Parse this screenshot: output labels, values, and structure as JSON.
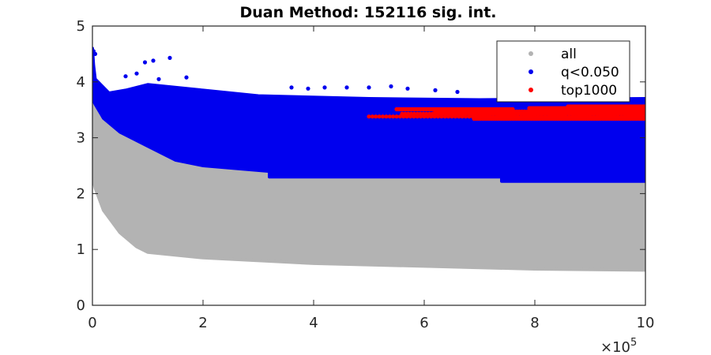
{
  "chart_data": {
    "type": "scatter",
    "title": "Duan Method: 152116 sig. int.",
    "xlabel": "",
    "ylabel": "",
    "xlim": [
      0,
      1000000
    ],
    "ylim": [
      0,
      5
    ],
    "x_ticks": [
      0,
      200000,
      400000,
      600000,
      800000,
      1000000
    ],
    "x_tick_labels": [
      "0",
      "2",
      "4",
      "6",
      "8",
      "10"
    ],
    "y_ticks": [
      0,
      1,
      2,
      3,
      4,
      5
    ],
    "y_tick_labels": [
      "0",
      "1",
      "2",
      "3",
      "4",
      "5"
    ],
    "x_exponent_label": "×10",
    "x_exponent_power": "5",
    "grid": false,
    "legend_position": "top-right",
    "series": [
      {
        "name": "all",
        "color": "#b3b3b3",
        "render": "band",
        "upper": [
          [
            0,
            4.2
          ],
          [
            5000,
            3.9
          ],
          [
            20000,
            3.6
          ],
          [
            50000,
            3.35
          ],
          [
            100000,
            3.1
          ],
          [
            200000,
            2.85
          ],
          [
            300000,
            2.7
          ],
          [
            500000,
            2.55
          ],
          [
            700000,
            2.4
          ],
          [
            1000000,
            2.3
          ]
        ],
        "lower": [
          [
            0,
            2.3
          ],
          [
            5000,
            2.1
          ],
          [
            20000,
            1.7
          ],
          [
            50000,
            1.3
          ],
          [
            80000,
            1.05
          ],
          [
            100000,
            0.95
          ],
          [
            200000,
            0.85
          ],
          [
            400000,
            0.75
          ],
          [
            600000,
            0.7
          ],
          [
            800000,
            0.65
          ],
          [
            1000000,
            0.63
          ]
        ]
      },
      {
        "name": "q<0.050",
        "color": "#0000ee",
        "render": "band",
        "upper": [
          [
            0,
            4.6
          ],
          [
            2000,
            4.3
          ],
          [
            5000,
            4.05
          ],
          [
            30000,
            3.8
          ],
          [
            60000,
            3.85
          ],
          [
            100000,
            3.95
          ],
          [
            200000,
            3.85
          ],
          [
            300000,
            3.75
          ],
          [
            500000,
            3.7
          ],
          [
            700000,
            3.68
          ],
          [
            1000000,
            3.7
          ]
        ],
        "lower": [
          [
            0,
            3.7
          ],
          [
            5000,
            3.6
          ],
          [
            20000,
            3.35
          ],
          [
            50000,
            3.1
          ],
          [
            100000,
            2.85
          ],
          [
            150000,
            2.6
          ],
          [
            200000,
            2.5
          ],
          [
            320000,
            2.4
          ],
          [
            320001,
            2.3
          ],
          [
            740000,
            2.3
          ],
          [
            740001,
            2.22
          ],
          [
            1000000,
            2.22
          ]
        ],
        "outliers": [
          [
            2000,
            4.55
          ],
          [
            5000,
            4.5
          ],
          [
            95000,
            4.35
          ],
          [
            110000,
            4.38
          ],
          [
            140000,
            4.43
          ],
          [
            60000,
            4.1
          ],
          [
            80000,
            4.15
          ],
          [
            120000,
            4.05
          ],
          [
            170000,
            4.08
          ],
          [
            360000,
            3.9
          ],
          [
            390000,
            3.88
          ],
          [
            420000,
            3.9
          ],
          [
            460000,
            3.9
          ],
          [
            500000,
            3.9
          ],
          [
            540000,
            3.92
          ],
          [
            570000,
            3.88
          ],
          [
            620000,
            3.85
          ],
          [
            660000,
            3.82
          ],
          [
            760000,
            3.78
          ]
        ]
      },
      {
        "name": "top1000",
        "color": "#ff0000",
        "render": "points",
        "rows": [
          {
            "y": 3.38,
            "x_from": 500000,
            "x_to": 1000000
          },
          {
            "y": 3.43,
            "x_from": 560000,
            "x_to": 1000000
          },
          {
            "y": 3.47,
            "x_from": 620000,
            "x_to": 1000000
          },
          {
            "y": 3.51,
            "x_from": 550000,
            "x_to": 760000
          },
          {
            "y": 3.53,
            "x_from": 790000,
            "x_to": 1000000
          },
          {
            "y": 3.56,
            "x_from": 860000,
            "x_to": 1000000
          },
          {
            "y": 3.34,
            "x_from": 690000,
            "x_to": 1000000
          }
        ]
      }
    ]
  }
}
